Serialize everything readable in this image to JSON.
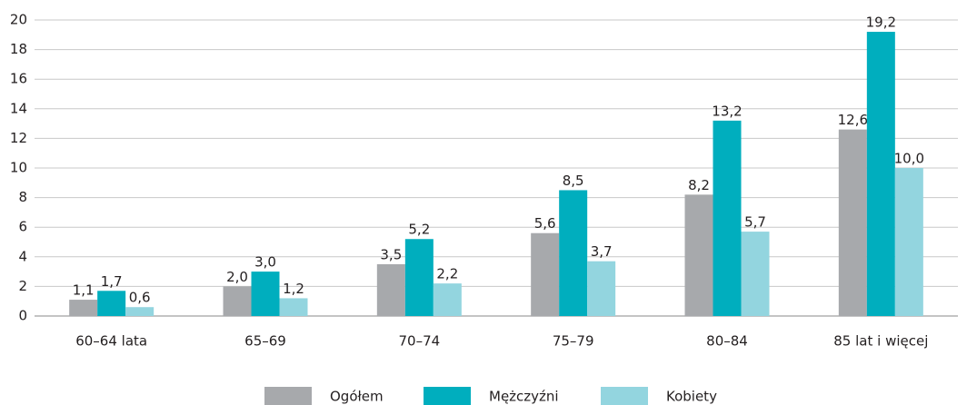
{
  "chart_data": {
    "type": "bar",
    "categories": [
      "60–64 lata",
      "65–69",
      "70–74",
      "75–79",
      "80–84",
      "85 lat i więcej"
    ],
    "series": [
      {
        "name": "Ogółem",
        "color": "#a7a9ac",
        "values": [
          1.1,
          2.0,
          3.5,
          5.6,
          8.2,
          12.6
        ],
        "value_labels": [
          "1,1",
          "2,0",
          "3,5",
          "5,6",
          "8,2",
          "12,6"
        ]
      },
      {
        "name": "Mężczyźni",
        "color": "#00aebe",
        "values": [
          1.7,
          3.0,
          5.2,
          8.5,
          13.2,
          19.2
        ],
        "value_labels": [
          "1,7",
          "3,0",
          "5,2",
          "8,5",
          "13,2",
          "19,2"
        ]
      },
      {
        "name": "Kobiety",
        "color": "#93d5df",
        "values": [
          0.6,
          1.2,
          2.2,
          3.7,
          5.7,
          10.0
        ],
        "value_labels": [
          "0,6",
          "1,2",
          "2,2",
          "3,7",
          "5,7",
          "10,0"
        ]
      }
    ],
    "ylim": [
      0,
      20
    ],
    "yticks": [
      0,
      2,
      4,
      6,
      8,
      10,
      12,
      14,
      16,
      18,
      20
    ],
    "grid": true,
    "legend": "bottom"
  }
}
